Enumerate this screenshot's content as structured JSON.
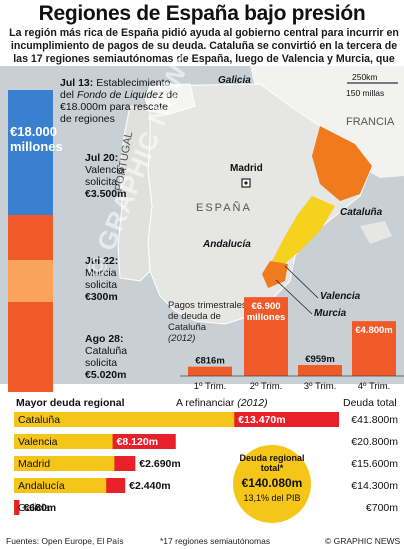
{
  "header": {
    "title": "Regiones de España bajo presión",
    "subtitle": "La región más rica de España pidió ayuda al gobierno central para incurrir en incumplimiento de pagos de su deuda. Cataluña se convirtió en la tercera de las 17 regiones semiautónomas de España, luego de Valencia y Murcia, que solicita ayuda"
  },
  "timeline": {
    "total_label": "€18.000 millones",
    "items": [
      {
        "date": "Jul 13:",
        "text_1": "Establecimiento del ",
        "text_italic": "Fondo de Liquidez",
        "text_2": " de €18.000m para rescate de regiones"
      },
      {
        "date": "Jul 20:",
        "text": "Valencia solicita",
        "amount": "€3.500m"
      },
      {
        "date": "Jul 22:",
        "text": "Murcia solicita",
        "amount": "€300m"
      },
      {
        "date": "Ago 28:",
        "text": "Cataluña solicita",
        "amount": "€5.020m"
      }
    ]
  },
  "map": {
    "scale_km": "250km",
    "scale_mi": "150 millas",
    "labels": {
      "galicia": "Galicia",
      "francia": "FRANCIA",
      "portugal": "PORTUGAL",
      "espana": "ESPAÑA",
      "madrid": "Madrid",
      "cataluna": "Cataluña",
      "andalucia": "Andalucía",
      "valencia": "Valencia",
      "murcia": "Murcia"
    },
    "colors": {
      "sea": "#c8d0d6",
      "land": "#f2f2f0",
      "spain": "#e6e6e4",
      "cataluna": "#f07a1e",
      "valencia": "#f5d21e",
      "murcia": "#f07a1e"
    }
  },
  "watermark": "© GRAPHIC NEWS",
  "chart_data": [
    {
      "type": "bar",
      "title": "Pagos trimestrales de deuda de Cataluña",
      "subtitle": "(2012)",
      "categories": [
        "1º Trim.",
        "2º Trim.",
        "3º Trim.",
        "4º Trim."
      ],
      "values": [
        816,
        6900,
        959,
        4800
      ],
      "value_labels": [
        "€816m",
        "€6.900 millones",
        "€959m",
        "€4.800m"
      ],
      "unit": "millones de euros",
      "color": "#f05a28"
    },
    {
      "type": "bar",
      "title": "Mayor deuda regional",
      "legend_refinance": "A refinanciar",
      "legend_refinance_year": "(2012)",
      "legend_total": "Deuda total",
      "categories": [
        "Cataluña",
        "Valencia",
        "Madrid",
        "Andalucía",
        "Galicia"
      ],
      "series": [
        {
          "name": "A refinanciar (2012)",
          "values": [
            13470,
            8120,
            2690,
            2440,
            680
          ],
          "labels": [
            "€13.470m",
            "€8.120m",
            "€2.690m",
            "€2.440m",
            "€680m"
          ]
        },
        {
          "name": "Deuda total",
          "values": [
            41800,
            20800,
            15600,
            14300,
            700
          ],
          "labels": [
            "€41.800m",
            "€20.800m",
            "€15.600m",
            "€14.300m",
            "€700m"
          ]
        }
      ],
      "callout": {
        "label": "Deuda regional total*",
        "value": "€140.080m",
        "note": "13,1% del PIB"
      },
      "colors": {
        "refinance": "#e8202a",
        "total": "#f5c518",
        "other": "#f5c518"
      }
    }
  ],
  "footer": {
    "sources": "Fuentes: Open Europe, El País",
    "note": "*17 regiones semiautónomas",
    "credit": "© GRAPHIC NEWS"
  }
}
